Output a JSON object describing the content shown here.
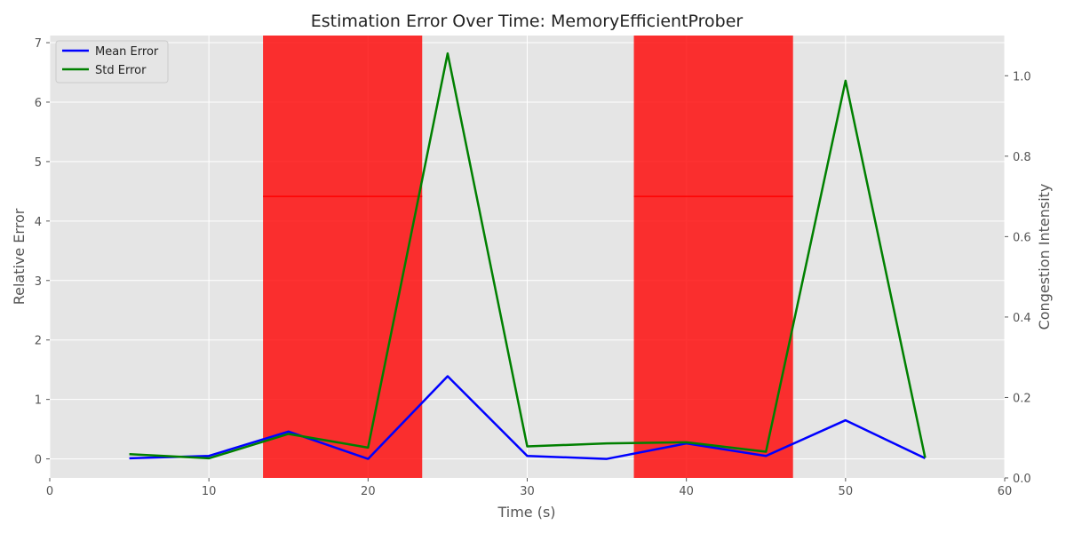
{
  "chart_data": {
    "type": "line",
    "title": "Estimation Error Over Time: MemoryEfficientProber",
    "xlabel": "Time (s)",
    "ylabel": "Relative Error",
    "y2label": "Congestion Intensity",
    "xlim": [
      0,
      60
    ],
    "ylim": [
      -0.32,
      7.12
    ],
    "y2lim": [
      0,
      1.1
    ],
    "xticks": [
      0,
      10,
      20,
      30,
      40,
      50,
      60
    ],
    "yticks": [
      0,
      1,
      2,
      3,
      4,
      5,
      6,
      7
    ],
    "y2ticks": [
      0.0,
      0.2,
      0.4,
      0.6,
      0.8,
      1.0
    ],
    "grid": true,
    "legend_position": "upper-left",
    "x": [
      5,
      10,
      15,
      20,
      25,
      30,
      35,
      40,
      45,
      50,
      55
    ],
    "series": [
      {
        "name": "Mean Error",
        "color": "#0000ff",
        "values": [
          0.01,
          0.05,
          0.46,
          0.0,
          1.39,
          0.05,
          0.0,
          0.26,
          0.05,
          0.65,
          0.01
        ]
      },
      {
        "name": "Std Error",
        "color": "#008000",
        "values": [
          0.08,
          0.01,
          0.42,
          0.19,
          6.82,
          0.21,
          0.26,
          0.28,
          0.12,
          6.36,
          0.02
        ]
      }
    ],
    "congestion_periods": [
      {
        "start": 13.4,
        "end": 23.4,
        "intensity": 0.7,
        "color": "#ff0000"
      },
      {
        "start": 36.7,
        "end": 46.7,
        "intensity": 0.7,
        "color": "#ff0000"
      }
    ]
  }
}
